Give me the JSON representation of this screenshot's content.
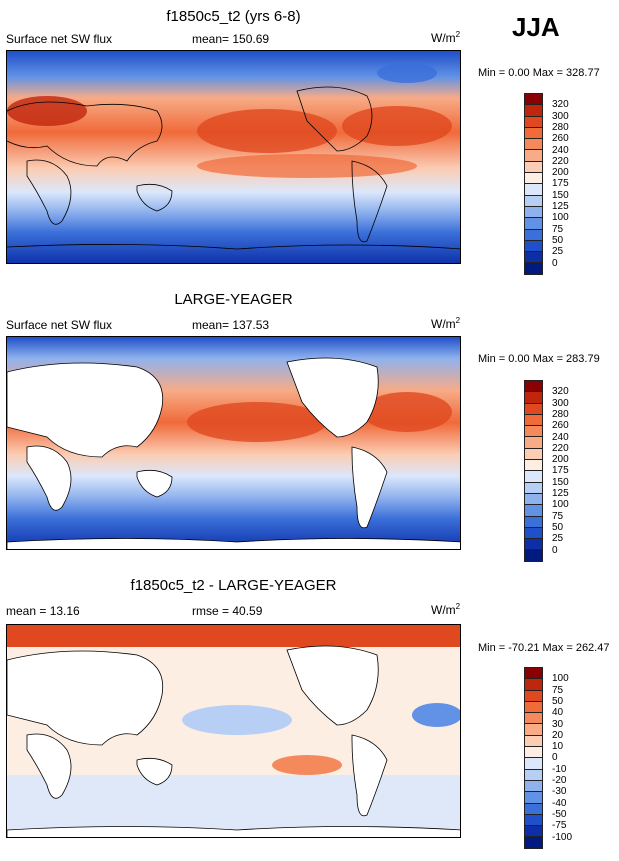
{
  "season": "JJA",
  "panels": [
    {
      "title": "f1850c5_t2 (yrs 6-8)",
      "left_label": "Surface net SW flux",
      "center_label": "mean= 150.69",
      "units": "W/m",
      "units_sup": "2",
      "minmax": "Min =   0.00 Max = 328.77"
    },
    {
      "title": "LARGE-YEAGER",
      "left_label": "Surface net SW flux",
      "center_label": "mean= 137.53",
      "units": "W/m",
      "units_sup": "2",
      "minmax": "Min =   0.00 Max = 283.79"
    },
    {
      "title": "f1850c5_t2 - LARGE-YEAGER",
      "left_label": "mean =  13.16",
      "center_label": "rmse =  40.59",
      "units": "W/m",
      "units_sup": "2",
      "minmax": "Min = -70.21 Max = 262.47"
    }
  ],
  "colorbar_flux": {
    "labels": [
      "320",
      "300",
      "280",
      "260",
      "240",
      "220",
      "200",
      "175",
      "150",
      "125",
      "100",
      "75",
      "50",
      "25",
      "0"
    ],
    "colors": [
      "#8b0000",
      "#c0250e",
      "#e0481f",
      "#f06a3a",
      "#f48a5c",
      "#f7ab86",
      "#fbcdb4",
      "#fdeee4",
      "#dbe7fb",
      "#b8cff5",
      "#8fb2ee",
      "#6192e6",
      "#3b6fd9",
      "#1f4fc9",
      "#0c2fa8",
      "#001a80"
    ]
  },
  "colorbar_diff": {
    "labels": [
      "100",
      "75",
      "50",
      "40",
      "30",
      "20",
      "10",
      "0",
      "-10",
      "-20",
      "-30",
      "-40",
      "-50",
      "-75",
      "-100"
    ],
    "colors": [
      "#8b0000",
      "#c0250e",
      "#e0481f",
      "#f06a3a",
      "#f48a5c",
      "#f7ab86",
      "#fbcdb4",
      "#fdeee4",
      "#dbe7fb",
      "#b8cff5",
      "#8fb2ee",
      "#6192e6",
      "#3b6fd9",
      "#1f4fc9",
      "#0c2fa8",
      "#001a80"
    ]
  },
  "chart_data": [
    {
      "type": "heatmap",
      "title": "f1850c5_t2 (yrs 6-8)",
      "variable": "Surface net SW flux",
      "mean": 150.69,
      "min": 0.0,
      "max": 328.77,
      "units": "W/m2",
      "levels": [
        0,
        25,
        50,
        75,
        100,
        125,
        150,
        175,
        200,
        220,
        240,
        260,
        280,
        300,
        320
      ]
    },
    {
      "type": "heatmap",
      "title": "LARGE-YEAGER",
      "variable": "Surface net SW flux",
      "mean": 137.53,
      "min": 0.0,
      "max": 283.79,
      "units": "W/m2",
      "levels": [
        0,
        25,
        50,
        75,
        100,
        125,
        150,
        175,
        200,
        220,
        240,
        260,
        280,
        300,
        320
      ]
    },
    {
      "type": "heatmap",
      "title": "f1850c5_t2 - LARGE-YEAGER",
      "mean": 13.16,
      "rmse": 40.59,
      "min": -70.21,
      "max": 262.47,
      "units": "W/m2",
      "levels": [
        -100,
        -75,
        -50,
        -40,
        -30,
        -20,
        -10,
        0,
        10,
        20,
        30,
        40,
        50,
        75,
        100
      ]
    }
  ]
}
